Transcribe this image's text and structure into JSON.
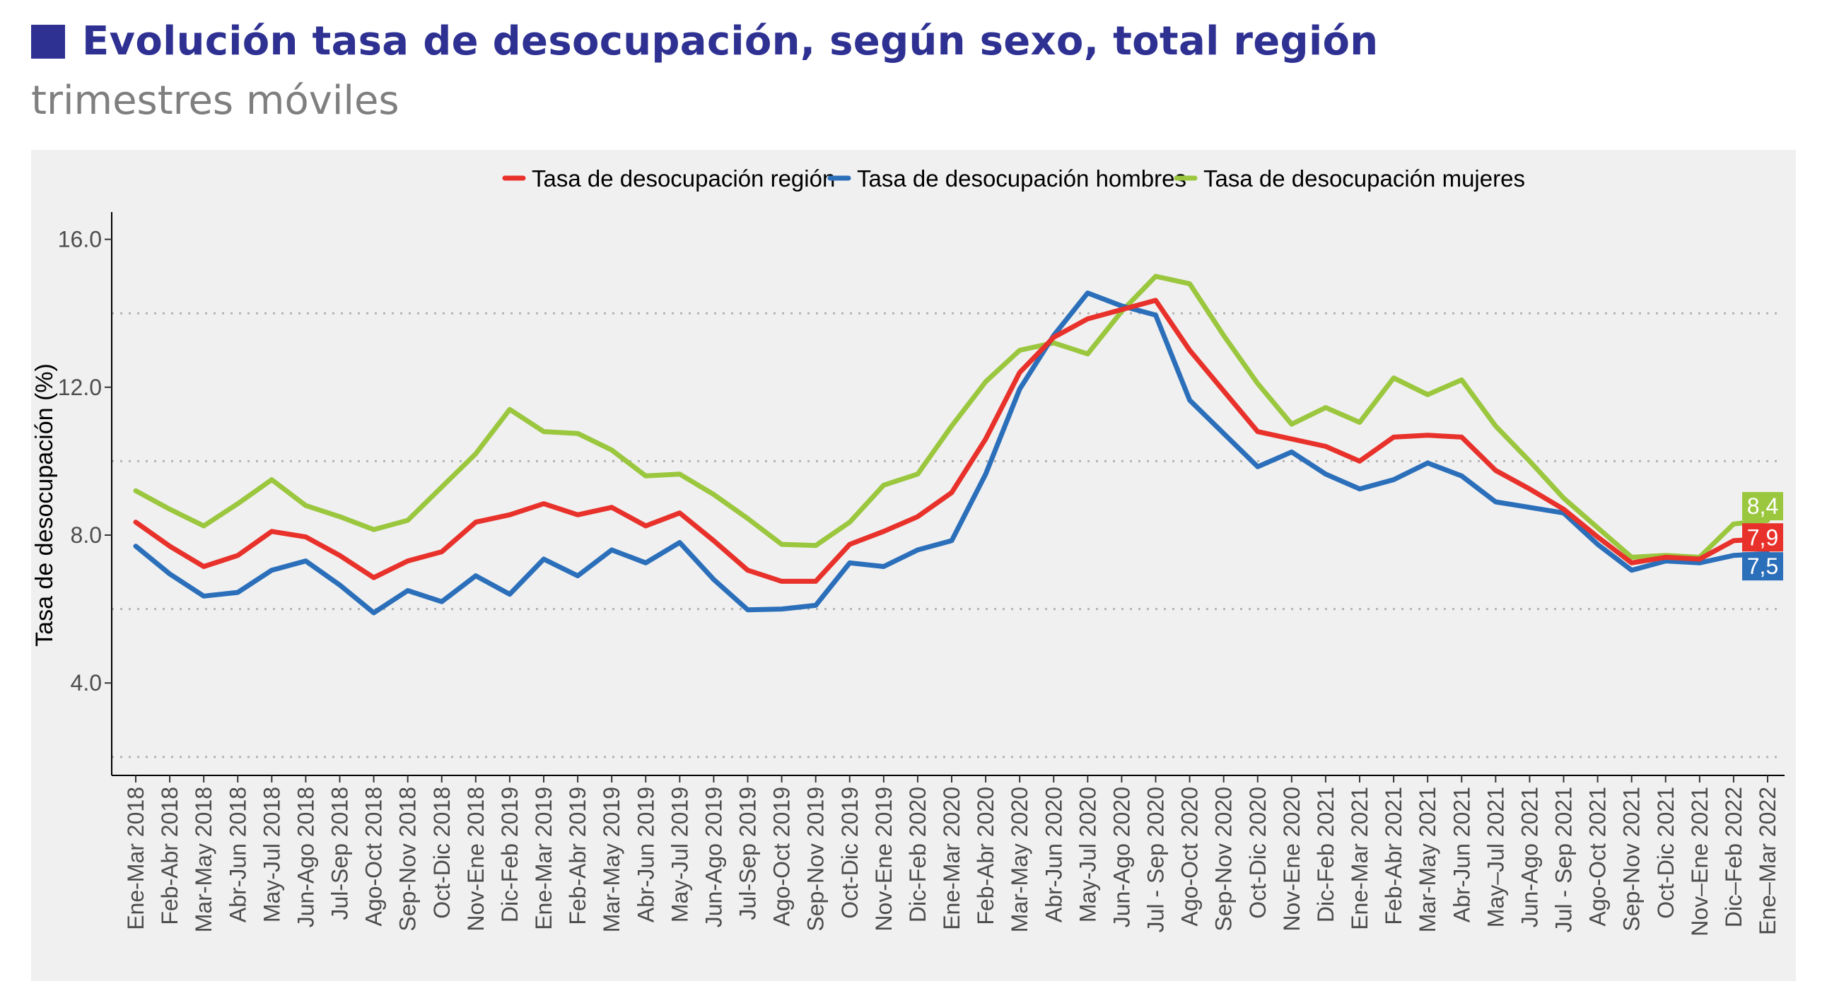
{
  "header": {
    "title": "Evolución tasa de desocupación, según sexo, total región",
    "subtitle": "trimestres móviles",
    "title_color": "#2e3192"
  },
  "chart_data": {
    "type": "line",
    "title": "Evolución tasa de desocupación, según sexo, total región",
    "subtitle": "trimestres móviles",
    "xlabel": "",
    "ylabel": "Tasa de desocupación (%)",
    "ylim": [
      1.5,
      16.7
    ],
    "yticks": [
      4.0,
      8.0,
      12.0,
      16.0
    ],
    "y_tick_labels": [
      "4.0",
      "8.0",
      "12.0",
      "16.0"
    ],
    "gridlines_dotted": [
      2,
      6,
      10,
      14
    ],
    "legend_position": "top",
    "categories": [
      "Ene-Mar 2018",
      "Feb-Abr 2018",
      "Mar-May 2018",
      "Abr-Jun 2018",
      "May-Jul 2018",
      "Jun-Ago 2018",
      "Jul-Sep 2018",
      "Ago-Oct 2018",
      "Sep-Nov 2018",
      "Oct-Dic 2018",
      "Nov-Ene 2018",
      "Dic-Feb 2019",
      "Ene-Mar 2019",
      "Feb-Abr 2019",
      "Mar-May 2019",
      "Abr-Jun 2019",
      "May-Jul 2019",
      "Jun-Ago 2019",
      "Jul-Sep 2019",
      "Ago-Oct 2019",
      "Sep-Nov 2019",
      "Oct-Dic 2019",
      "Nov-Ene 2019",
      "Dic-Feb 2020",
      "Ene-Mar 2020",
      "Feb-Abr 2020",
      "Mar-May 2020",
      "Abr-Jun 2020",
      "May-Jul 2020",
      "Jun-Ago 2020",
      "Jul - Sep 2020",
      "Ago-Oct 2020",
      "Sep-Nov 2020",
      "Oct-Dic 2020",
      "Nov-Ene 2020",
      "Dic-Feb 2021",
      "Ene-Mar 2021",
      "Feb-Abr 2021",
      "Mar-May 2021",
      "Abr-Jun 2021",
      "May–Jul 2021",
      "Jun-Ago 2021",
      "Jul - Sep 2021",
      "Ago-Oct 2021",
      "Sep-Nov 2021",
      "Oct-Dic 2021",
      "Nov–Ene 2021",
      "Dic–Feb 2022",
      "Ene–Mar 2022"
    ],
    "series": [
      {
        "name": "Tasa de desocupación región",
        "color": "#e8312a",
        "end_label": "7,9",
        "values": [
          8.35,
          7.7,
          7.15,
          7.45,
          8.1,
          7.95,
          7.45,
          6.85,
          7.3,
          7.55,
          8.35,
          8.55,
          8.85,
          8.55,
          8.75,
          8.25,
          8.6,
          7.85,
          7.05,
          6.75,
          6.75,
          7.75,
          8.1,
          8.5,
          9.15,
          10.6,
          12.4,
          13.35,
          13.85,
          14.1,
          14.35,
          13.0,
          11.9,
          10.8,
          10.6,
          10.4,
          10.0,
          10.65,
          10.7,
          10.65,
          9.75,
          9.25,
          8.7,
          7.95,
          7.25,
          7.4,
          7.35,
          7.85,
          7.9
        ]
      },
      {
        "name": "Tasa de desocupación hombres",
        "color": "#2b6fba",
        "end_label": "7,5",
        "values": [
          7.7,
          6.95,
          6.35,
          6.45,
          7.05,
          7.3,
          6.65,
          5.9,
          6.5,
          6.2,
          6.9,
          6.4,
          7.35,
          6.9,
          7.6,
          7.25,
          7.8,
          6.8,
          5.98,
          6.0,
          6.1,
          7.25,
          7.15,
          7.6,
          7.85,
          9.65,
          11.95,
          13.4,
          14.55,
          14.2,
          13.95,
          11.65,
          10.75,
          9.85,
          10.25,
          9.65,
          9.25,
          9.5,
          9.95,
          9.6,
          8.9,
          8.75,
          8.6,
          7.75,
          7.05,
          7.3,
          7.25,
          7.45,
          7.5
        ]
      },
      {
        "name": "Tasa de desocupación mujeres",
        "color": "#9bc73f",
        "end_label": "8,4",
        "values": [
          9.2,
          8.7,
          8.25,
          8.85,
          9.5,
          8.8,
          8.5,
          8.15,
          8.4,
          9.3,
          10.2,
          11.4,
          10.8,
          10.75,
          10.3,
          9.6,
          9.65,
          9.1,
          8.45,
          7.75,
          7.72,
          8.35,
          9.35,
          9.65,
          10.95,
          12.15,
          13.0,
          13.2,
          12.9,
          14.05,
          15.0,
          14.8,
          13.4,
          12.1,
          11.0,
          11.45,
          11.05,
          12.25,
          11.8,
          12.2,
          10.95,
          10.0,
          9.0,
          8.2,
          7.4,
          7.45,
          7.4,
          8.3,
          8.4
        ]
      }
    ]
  }
}
